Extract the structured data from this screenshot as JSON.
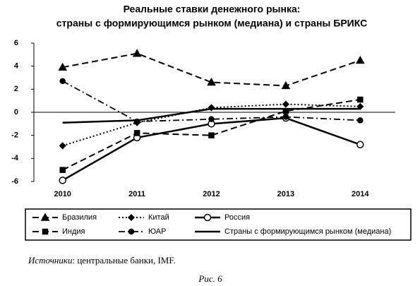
{
  "chart_data": {
    "type": "line",
    "title": [
      "Реальные ставки денежного рынка:",
      "страны с формирующимся рынком (медиана) и страны БРИКС"
    ],
    "categories": [
      "2010",
      "2011",
      "2012",
      "2013",
      "2014"
    ],
    "ylim": [
      -6,
      6
    ],
    "yticks": [
      -6,
      -4,
      -2,
      0,
      2,
      4,
      6
    ],
    "grid": false,
    "series": [
      {
        "name": "Бразилия",
        "color": "#000000",
        "line_style": "dashed",
        "marker": "triangle",
        "values": [
          3.9,
          5.1,
          2.6,
          2.3,
          4.5
        ]
      },
      {
        "name": "Китай",
        "color": "#000000",
        "line_style": "dotted",
        "marker": "diamond",
        "values": [
          -2.9,
          -0.9,
          0.4,
          0.7,
          0.5
        ]
      },
      {
        "name": "Россия",
        "color": "#000000",
        "line_style": "solid",
        "marker": "open-circle",
        "values": [
          -5.9,
          -2.2,
          -1.0,
          -0.5,
          -2.8
        ]
      },
      {
        "name": "Индия",
        "color": "#000000",
        "line_style": "dashed",
        "marker": "square",
        "values": [
          -5.0,
          -1.8,
          -2.0,
          0.1,
          1.1
        ]
      },
      {
        "name": "ЮАР",
        "color": "#000000",
        "line_style": "dashdot",
        "marker": "circle",
        "values": [
          2.7,
          -0.8,
          -0.6,
          -0.4,
          -0.7
        ]
      },
      {
        "name": "Страны с формирующимся рынком (медиана)",
        "color": "#000000",
        "line_style": "solid",
        "marker": "none",
        "values": [
          -0.9,
          -0.7,
          0.3,
          0.3,
          0.3
        ]
      }
    ],
    "source_label": "Источники",
    "source_text": ": центральные банки, IMF.",
    "figure_caption": "Рис. 6"
  }
}
